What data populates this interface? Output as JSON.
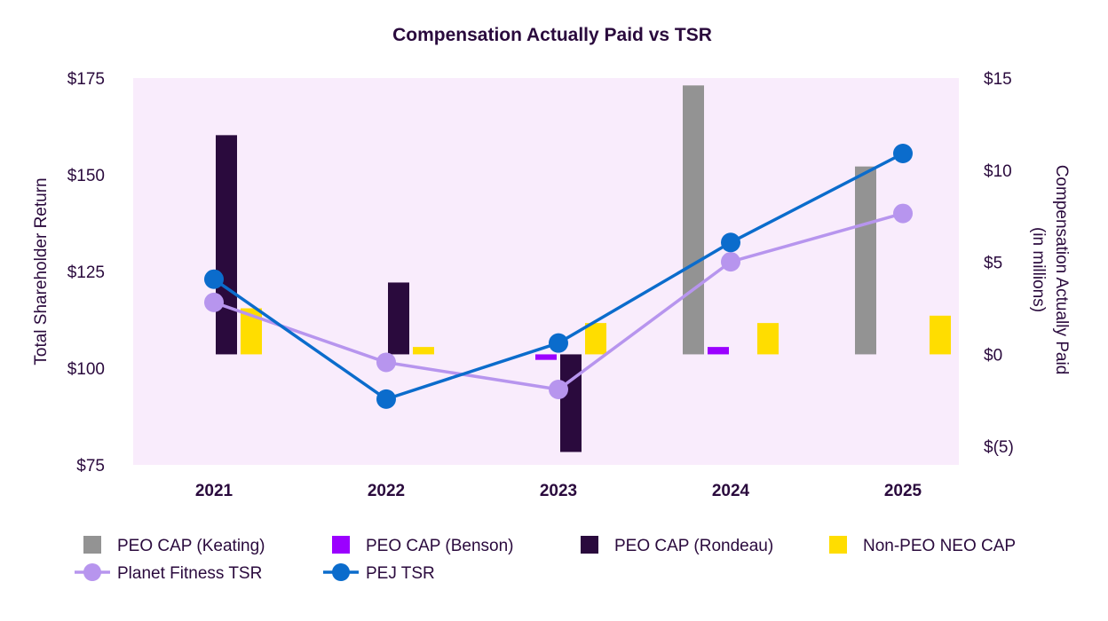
{
  "chart_data": {
    "type": "bar",
    "title": "Compensation Actually Paid vs TSR",
    "categories": [
      "2021",
      "2022",
      "2023",
      "2024",
      "2025"
    ],
    "left_axis": {
      "label": "Total Shareholder Return",
      "range": [
        75,
        175
      ],
      "ticks": [
        75,
        100,
        125,
        150,
        175
      ],
      "tick_labels": [
        "$75",
        "$100",
        "$125",
        "$150",
        "$175"
      ]
    },
    "right_axis": {
      "label_line1": "Compensation Actually Paid",
      "label_line2": "(in millions)",
      "range": [
        -6,
        15
      ],
      "ticks": [
        -5,
        0,
        5,
        10,
        15
      ],
      "tick_labels": [
        "$(5)",
        "$0",
        "$5",
        "$10",
        "$15"
      ]
    },
    "bar_series": [
      {
        "name": "PEO CAP (Keating)",
        "color": "#939393",
        "values": [
          null,
          null,
          null,
          14.6,
          10.2
        ]
      },
      {
        "name": "PEO CAP (Benson)",
        "color": "#9b00ff",
        "values": [
          null,
          null,
          -0.3,
          0.4,
          null
        ]
      },
      {
        "name": "PEO CAP (Rondeau)",
        "color": "#2a0a3d",
        "values": [
          11.9,
          3.9,
          -5.3,
          null,
          null
        ]
      },
      {
        "name": "Non-PEO NEO CAP",
        "color": "#ffdd00",
        "values": [
          2.5,
          0.4,
          1.7,
          1.7,
          2.1
        ]
      }
    ],
    "line_series": [
      {
        "name": "Planet Fitness TSR",
        "color": "#b795ee",
        "values": [
          117,
          101.5,
          94.5,
          127.5,
          140
        ]
      },
      {
        "name": "PEJ TSR",
        "color": "#0b6ccc",
        "values": [
          123,
          92,
          106.5,
          132.5,
          155.5
        ]
      }
    ],
    "legend_placement": "bottom",
    "plot_background": "#f9ecfc",
    "grid": false
  }
}
